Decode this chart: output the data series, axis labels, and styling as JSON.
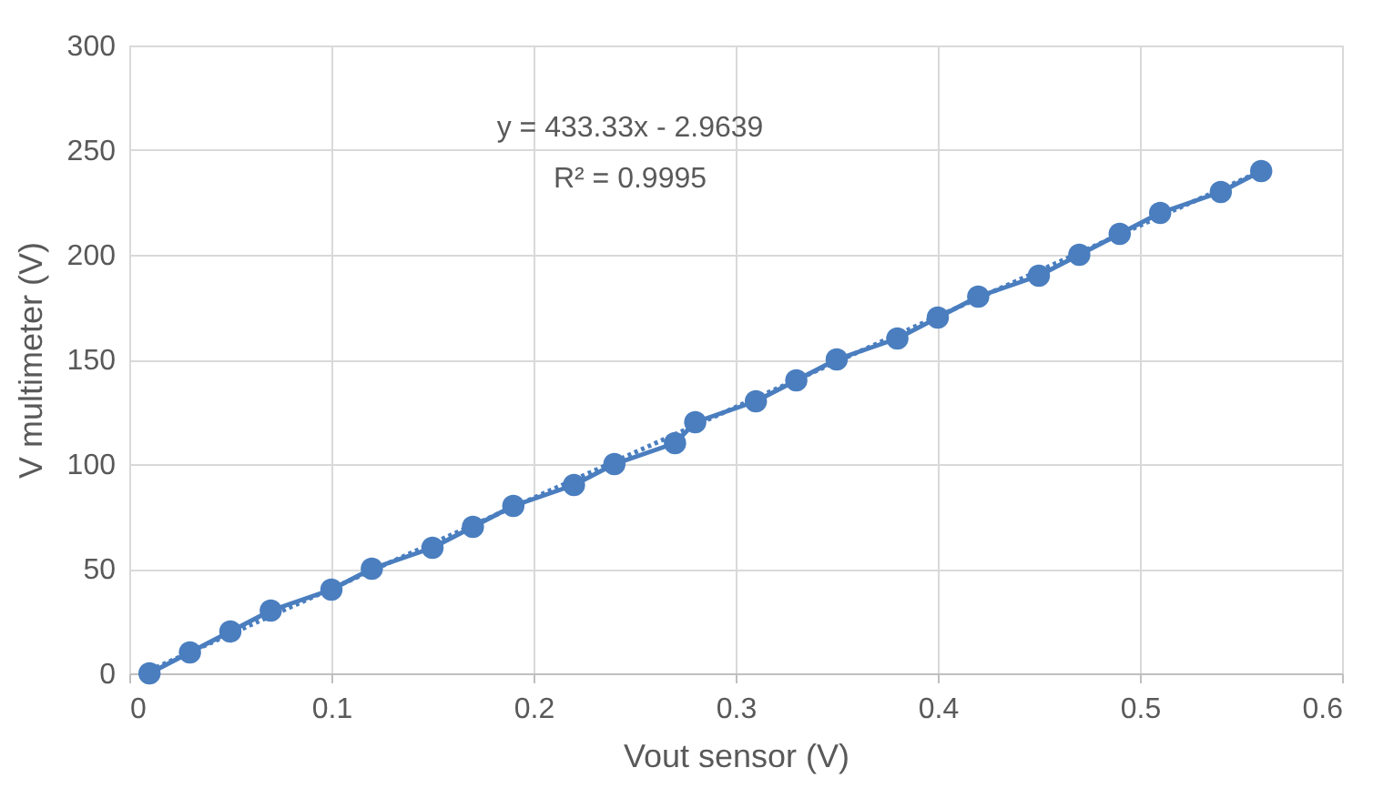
{
  "chart_data": {
    "type": "line",
    "xlabel": "Vout sensor (V)",
    "ylabel": "V multimeter (V)",
    "xlim": [
      0,
      0.6
    ],
    "xticks": [
      0,
      0.1,
      0.2,
      0.3,
      0.4,
      0.5,
      0.6
    ],
    "ylim": [
      0,
      300
    ],
    "yticks": [
      0,
      50,
      100,
      150,
      200,
      250,
      300
    ],
    "grid": true,
    "series": [
      {
        "color": "#4a7ebf",
        "marker": "circle",
        "line_style": "solid",
        "x": [
          0.01,
          0.03,
          0.05,
          0.07,
          0.1,
          0.12,
          0.15,
          0.17,
          0.19,
          0.22,
          0.24,
          0.27,
          0.28,
          0.31,
          0.33,
          0.35,
          0.38,
          0.4,
          0.42,
          0.45,
          0.47,
          0.49,
          0.51,
          0.54,
          0.56
        ],
        "values": [
          0,
          10,
          20,
          30,
          40,
          50,
          60,
          70,
          80,
          90,
          100,
          110,
          120,
          130,
          140,
          150,
          160,
          170,
          180,
          190,
          200,
          210,
          220,
          230,
          240
        ]
      },
      {
        "color": "#4a7ebf",
        "marker": "none",
        "line_style": "dotted",
        "x": [
          0.01,
          0.56
        ],
        "values": [
          1.4,
          240
        ]
      }
    ],
    "annotations": [
      "y = 433.33x - 2.9639",
      "R² = 0.9995"
    ]
  }
}
